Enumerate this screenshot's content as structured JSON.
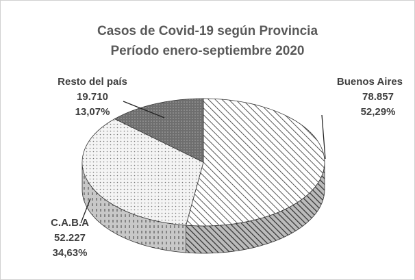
{
  "chart_data": {
    "type": "pie",
    "title": "Casos de Covid-19 según Provincia",
    "subtitle": "Período enero-septiembre 2020",
    "categories": [
      "Buenos Aires",
      "C.A.B.A",
      "Resto del país"
    ],
    "values": [
      78857,
      52227,
      19710
    ],
    "value_labels": [
      "78.857",
      "52.227",
      "19.710"
    ],
    "percentages": [
      52.29,
      34.63,
      13.07
    ],
    "percentage_labels": [
      "52,29%",
      "34,63%",
      "13,07%"
    ],
    "colors": [
      "#ffffff",
      "#f4f4f4",
      "#6e6e6e"
    ]
  }
}
